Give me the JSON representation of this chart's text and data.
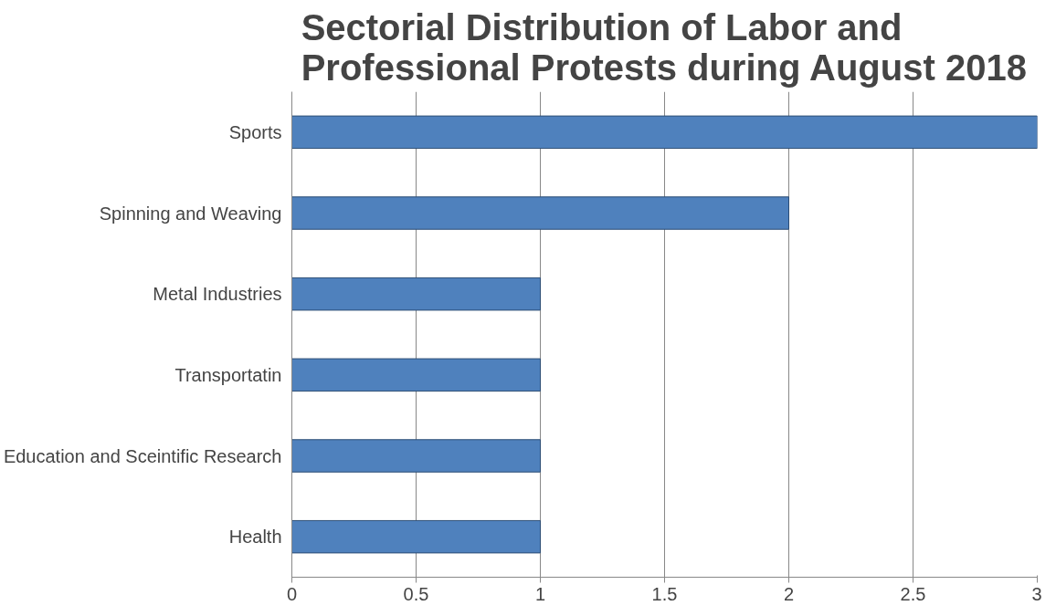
{
  "chart_data": {
    "type": "bar",
    "orientation": "horizontal",
    "title": "Sectorial Distribution of Labor and\nProfessional Protests during August 2018",
    "categories": [
      "Sports",
      "Spinning and Weaving",
      "Metal Industries",
      "Transportatin",
      "Education and Sceintific Research",
      "Health"
    ],
    "values": [
      3,
      2,
      1,
      1,
      1,
      1
    ],
    "color": "#4f81bd",
    "xlim": [
      0,
      3
    ],
    "xticks": [
      0,
      0.5,
      1,
      1.5,
      2,
      2.5,
      3
    ],
    "grid": "x"
  }
}
